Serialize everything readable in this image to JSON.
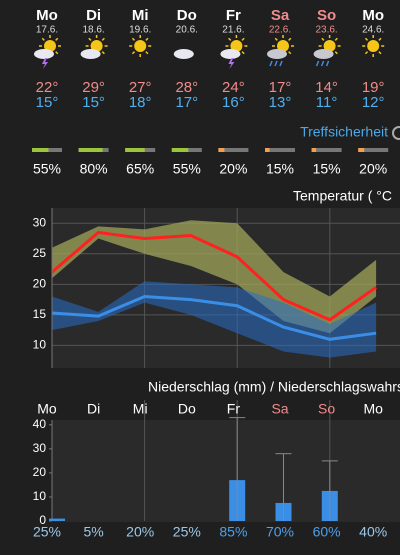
{
  "days": [
    {
      "name": "Mo",
      "date": "17.6.",
      "high": "22°",
      "low": "15°"
    },
    {
      "name": "Di",
      "date": "18.6.",
      "high": "29°",
      "low": "15°"
    },
    {
      "name": "Mi",
      "date": "19.6.",
      "high": "27°",
      "low": "18°"
    },
    {
      "name": "Do",
      "date": "20.6.",
      "high": "28°",
      "low": "17°"
    },
    {
      "name": "Fr",
      "date": "21.6.",
      "high": "24°",
      "low": "16°"
    },
    {
      "name": "Sa",
      "date": "22.6.",
      "high": "17°",
      "low": "13°"
    },
    {
      "name": "So",
      "date": "23.6.",
      "high": "14°",
      "low": "11°"
    },
    {
      "name": "Mo",
      "date": "24.6.",
      "high": "19°",
      "low": "12°"
    }
  ],
  "accuracy": {
    "label": "Treffsicherheit",
    "values": [
      55,
      80,
      65,
      55,
      20,
      15,
      15,
      20
    ],
    "value_labels": [
      "55%",
      "80%",
      "65%",
      "55%",
      "20%",
      "15%",
      "15%",
      "20%"
    ],
    "colors": [
      "#9bc53d",
      "#9bc53d",
      "#9bc53d",
      "#9bc53d",
      "#f0a050",
      "#f0a050",
      "#f0a050",
      "#f0a050"
    ]
  },
  "chart_data": [
    {
      "type": "line",
      "title": "Temperatur ( °C",
      "ylim": [
        6.3,
        32.5
      ],
      "yticks": [
        30,
        25,
        20,
        15,
        10
      ],
      "grid": true,
      "series": [
        {
          "color": "#ff2020",
          "values": [
            22,
            28.5,
            27.5,
            28,
            24.5,
            17.5,
            14.2,
            19.5
          ]
        },
        {
          "color": "#3a8ee6",
          "values": [
            15.3,
            14.8,
            18,
            17.5,
            16.5,
            13,
            11,
            12
          ]
        }
      ],
      "bands": [
        {
          "color": "rgba(160,165,90,0.75)",
          "upper": [
            26,
            29.5,
            29,
            30.5,
            30,
            22,
            18,
            24
          ],
          "lower": [
            21,
            27.5,
            25,
            23,
            20,
            14,
            12,
            18
          ]
        },
        {
          "color": "rgba(40,110,200,0.55)",
          "upper": [
            18,
            15.5,
            20.5,
            20,
            19.5,
            17,
            13.5,
            17
          ],
          "lower": [
            12.5,
            14,
            17,
            15,
            12,
            9,
            8,
            9
          ]
        }
      ]
    },
    {
      "type": "bar",
      "title": "Niederschlag (mm) / Niederschlagswahrscheinlichkeit",
      "categories": [
        "Mo",
        "Di",
        "Mi",
        "Do",
        "Fr",
        "Sa",
        "So",
        "Mo"
      ],
      "ylim": [
        0,
        42
      ],
      "yticks": [
        40,
        30,
        20,
        10,
        0
      ],
      "color": "#3a8ee6",
      "values": [
        1,
        0,
        0,
        0,
        17,
        7.5,
        12.5,
        0
      ],
      "error_high": [
        null,
        null,
        null,
        null,
        43,
        28,
        25,
        null
      ],
      "probability_labels": [
        "25%",
        "5%",
        "20%",
        "25%",
        "85%",
        "70%",
        "60%",
        "40%"
      ]
    }
  ]
}
